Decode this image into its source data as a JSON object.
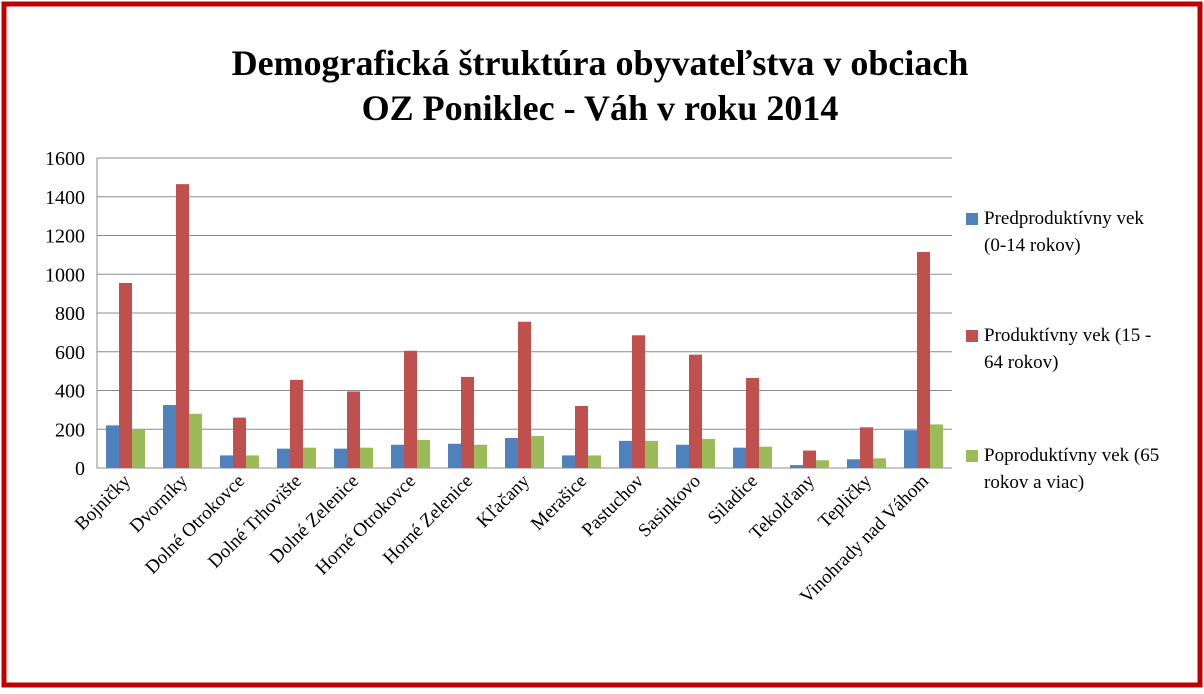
{
  "chart_data": {
    "type": "bar",
    "title": [
      "Demografická štruktúra obyvateľstva v obciach",
      "OZ Poniklec - Váh v roku 2014"
    ],
    "categories": [
      "Bojničky",
      "Dvorníky",
      "Dolné Otrokovce",
      "Dolné Trhovište",
      "Dolné Zelenice",
      "Horné Otrokovce",
      "Horné Zelenice",
      "Kľačany",
      "Merašice",
      "Pastuchov",
      "Sasinkovo",
      "Siladice",
      "Tekolďany",
      "Tepličky",
      "Vinohrady nad Váhom"
    ],
    "series": [
      {
        "name": "Predproduktívny vek (0-14 rokov)",
        "color": "#4f81bd",
        "values": [
          220,
          325,
          65,
          100,
          100,
          120,
          125,
          155,
          65,
          140,
          120,
          105,
          15,
          45,
          195
        ]
      },
      {
        "name": "Produktívny vek (15 - 64 rokov)",
        "color": "#c0504d",
        "values": [
          955,
          1465,
          260,
          455,
          395,
          605,
          470,
          755,
          320,
          685,
          585,
          465,
          90,
          210,
          1115
        ]
      },
      {
        "name": "Poproduktívny vek (65 rokov a viac)",
        "color": "#9bbb59",
        "values": [
          200,
          280,
          65,
          105,
          105,
          145,
          120,
          165,
          65,
          140,
          150,
          110,
          40,
          50,
          225
        ]
      }
    ],
    "ylim": [
      0,
      1600
    ],
    "yticks": [
      0,
      200,
      400,
      600,
      800,
      1000,
      1200,
      1400,
      1600
    ],
    "grid": true,
    "legend": "right"
  }
}
